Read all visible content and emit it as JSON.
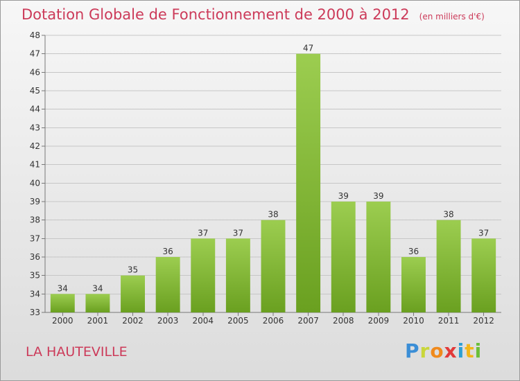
{
  "header": {
    "title": "Dotation Globale de Fonctionnement de 2000 à 2012",
    "unit": "(en milliers d'€)"
  },
  "footer": {
    "commune": "LA HAUTEVILLE",
    "logo_letters": [
      "P",
      "r",
      "o",
      "x",
      "i",
      "t",
      "i"
    ]
  },
  "colors": {
    "title": "#cc3a59",
    "bar_top": "#9ccd50",
    "bar_bottom": "#6aa020"
  },
  "chart_data": {
    "type": "bar",
    "categories": [
      "2000",
      "2001",
      "2002",
      "2003",
      "2004",
      "2005",
      "2006",
      "2007",
      "2008",
      "2009",
      "2010",
      "2011",
      "2012"
    ],
    "values": [
      34,
      34,
      35,
      36,
      37,
      37,
      38,
      47,
      39,
      39,
      36,
      38,
      37
    ],
    "ylim": [
      33,
      48
    ],
    "yticks": [
      33,
      34,
      35,
      36,
      37,
      38,
      39,
      40,
      41,
      42,
      43,
      44,
      45,
      46,
      47,
      48
    ],
    "grid": true,
    "title": "Dotation Globale de Fonctionnement de 2000 à 2012",
    "ylabel": "(en milliers d'€)",
    "xlabel": ""
  }
}
